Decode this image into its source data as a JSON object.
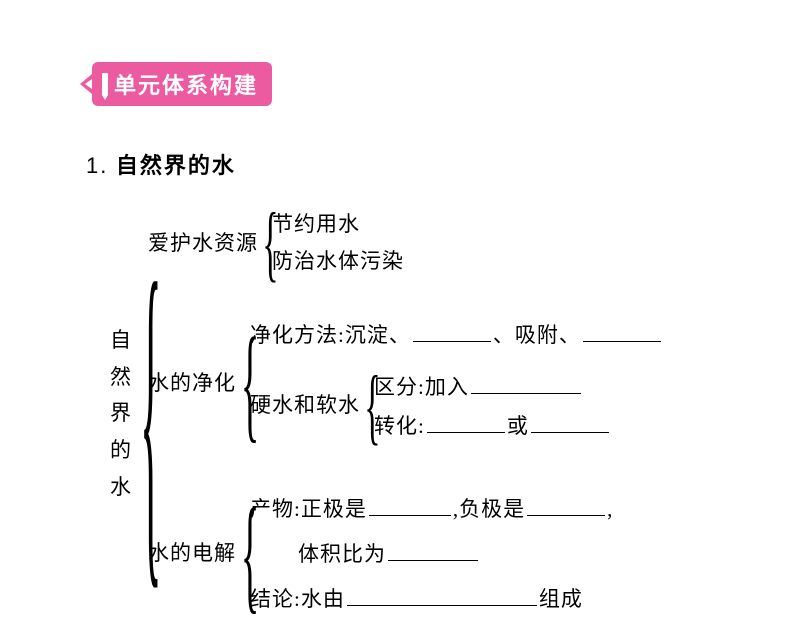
{
  "colors": {
    "tab_bg": "#ec5ba0",
    "tab_fg": "#ffffff",
    "text": "#000000",
    "page_bg": "#ffffff"
  },
  "header": {
    "title": "单元体系构建"
  },
  "section": {
    "number": "1.",
    "title": "自然界的水"
  },
  "diagram": {
    "root": "自然界的水",
    "branches": [
      {
        "label": "爱护水资源",
        "children": [
          {
            "text": "节约用水"
          },
          {
            "text": "防治水体污染"
          }
        ]
      },
      {
        "label": "水的净化",
        "children": [
          {
            "prefix": "净化方法:沉淀、",
            "blank1_width": 78,
            "mid1": "、吸附、",
            "blank2_width": 78
          },
          {
            "label": "硬水和软水",
            "sub": [
              {
                "prefix": "区分:加入",
                "blank_width": 110
              },
              {
                "prefix": "转化:",
                "blank1_width": 78,
                "mid": "或",
                "blank2_width": 78
              }
            ]
          }
        ]
      },
      {
        "label": "水的电解",
        "children": [
          {
            "line1_prefix": "产物:正极是",
            "line1_blank1_width": 82,
            "line1_mid": ",负极是",
            "line1_blank2_width": 78,
            "line1_suffix": ",",
            "line2_prefix": "体积比为",
            "line2_blank_width": 90
          },
          {
            "prefix": "结论:水由",
            "blank_width": 190,
            "suffix": "组成"
          }
        ]
      }
    ]
  },
  "typography": {
    "body_font_size_pt": 16,
    "header_font_size_pt": 17,
    "font_family": "SimSun / SimHei"
  }
}
